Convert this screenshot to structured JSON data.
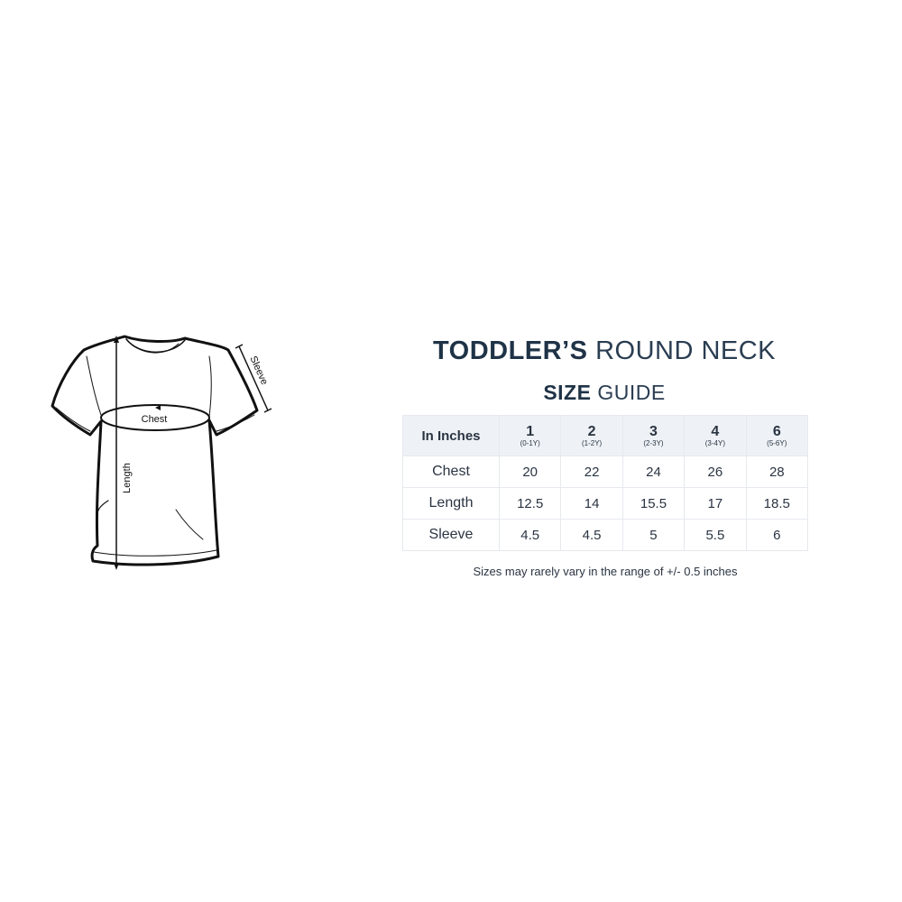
{
  "title": {
    "bold": "TODDLER’S",
    "light": "ROUND NECK"
  },
  "subtitle": {
    "bold": "SIZE",
    "light": "GUIDE"
  },
  "diagram": {
    "chest_label": "Chest",
    "length_label": "Length",
    "sleeve_label": "Sleeve"
  },
  "table": {
    "corner": "In Inches",
    "sizes": [
      {
        "size": "1",
        "age": "(0-1Y)"
      },
      {
        "size": "2",
        "age": "(1-2Y)"
      },
      {
        "size": "3",
        "age": "(2-3Y)"
      },
      {
        "size": "4",
        "age": "(3-4Y)"
      },
      {
        "size": "6",
        "age": "(5-6Y)"
      }
    ],
    "rows": [
      {
        "label": "Chest",
        "values": [
          "20",
          "22",
          "24",
          "26",
          "28"
        ]
      },
      {
        "label": "Length",
        "values": [
          "12.5",
          "14",
          "15.5",
          "17",
          "18.5"
        ]
      },
      {
        "label": "Sleeve",
        "values": [
          "4.5",
          "4.5",
          "5",
          "5.5",
          "6"
        ]
      }
    ]
  },
  "note": "Sizes may rarely vary in the range of +/- 0.5 inches",
  "colors": {
    "text": "#1f3347",
    "header_bg": "#eef2f6",
    "border": "#e6e9ed"
  }
}
